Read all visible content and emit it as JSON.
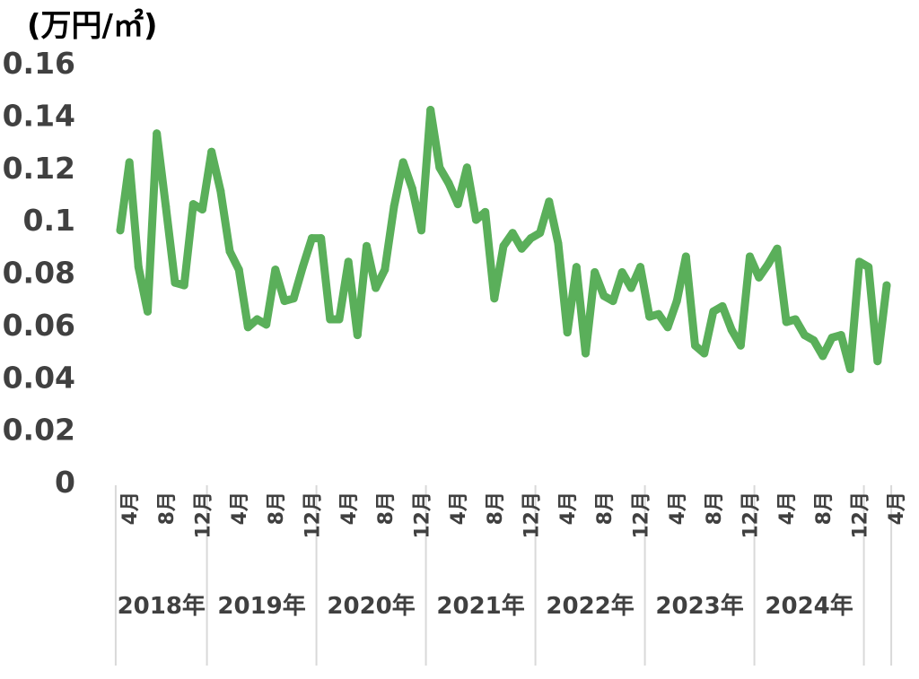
{
  "chart_data": {
    "type": "line",
    "ylabel": "(万円/㎡)",
    "ylim": [
      0,
      0.16
    ],
    "y_ticks": [
      "0",
      "0.02",
      "0.04",
      "0.06",
      "0.08",
      "0.1",
      "0.12",
      "0.14",
      "0.16"
    ],
    "x_start": "2018-03",
    "month_ticks": [
      {
        "index": 1,
        "label": "4月"
      },
      {
        "index": 5,
        "label": "8月"
      },
      {
        "index": 9,
        "label": "12月"
      },
      {
        "index": 13,
        "label": "4月"
      },
      {
        "index": 17,
        "label": "8月"
      },
      {
        "index": 21,
        "label": "12月"
      },
      {
        "index": 25,
        "label": "4月"
      },
      {
        "index": 29,
        "label": "8月"
      },
      {
        "index": 33,
        "label": "12月"
      },
      {
        "index": 37,
        "label": "4月"
      },
      {
        "index": 41,
        "label": "8月"
      },
      {
        "index": 45,
        "label": "12月"
      },
      {
        "index": 49,
        "label": "4月"
      },
      {
        "index": 53,
        "label": "8月"
      },
      {
        "index": 57,
        "label": "12月"
      },
      {
        "index": 61,
        "label": "4月"
      },
      {
        "index": 65,
        "label": "8月"
      },
      {
        "index": 69,
        "label": "12月"
      },
      {
        "index": 73,
        "label": "4月"
      },
      {
        "index": 77,
        "label": "8月"
      },
      {
        "index": 81,
        "label": "12月"
      },
      {
        "index": 85,
        "label": "4月"
      }
    ],
    "year_groups": [
      {
        "label": "2018年",
        "first": 0,
        "last": 9
      },
      {
        "label": "2019年",
        "first": 10,
        "last": 21
      },
      {
        "label": "2020年",
        "first": 22,
        "last": 33
      },
      {
        "label": "2021年",
        "first": 34,
        "last": 45
      },
      {
        "label": "2022年",
        "first": 46,
        "last": 57
      },
      {
        "label": "2023年",
        "first": 58,
        "last": 69
      },
      {
        "label": "2024年",
        "first": 70,
        "last": 81
      }
    ],
    "series": [
      {
        "color": "#5aaf5a",
        "values": [
          0.096,
          0.122,
          0.082,
          0.065,
          0.133,
          0.105,
          0.076,
          0.075,
          0.106,
          0.104,
          0.126,
          0.111,
          0.088,
          0.081,
          0.059,
          0.062,
          0.06,
          0.081,
          0.069,
          0.07,
          0.082,
          0.093,
          0.093,
          0.062,
          0.062,
          0.084,
          0.056,
          0.09,
          0.074,
          0.081,
          0.105,
          0.122,
          0.112,
          0.096,
          0.142,
          0.12,
          0.114,
          0.106,
          0.12,
          0.1,
          0.103,
          0.07,
          0.09,
          0.095,
          0.089,
          0.093,
          0.095,
          0.107,
          0.091,
          0.057,
          0.082,
          0.049,
          0.08,
          0.071,
          0.069,
          0.08,
          0.074,
          0.082,
          0.063,
          0.064,
          0.059,
          0.069,
          0.086,
          0.052,
          0.049,
          0.065,
          0.067,
          0.058,
          0.052,
          0.086,
          0.078,
          0.083,
          0.089,
          0.061,
          0.062,
          0.056,
          0.054,
          0.048,
          0.055,
          0.056,
          0.043,
          0.084,
          0.082,
          0.046,
          0.075
        ]
      }
    ]
  }
}
